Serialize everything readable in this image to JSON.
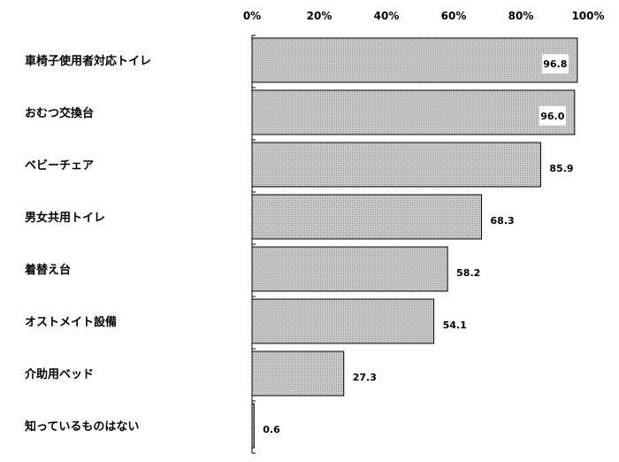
{
  "chart_data": {
    "type": "bar",
    "orientation": "horizontal",
    "categories": [
      "車椅子使用者対応トイレ",
      "おむつ交換台",
      "ベビーチェア",
      "男女共用トイレ",
      "着替え台",
      "オストメイト設備",
      "介助用ベッド",
      "知っているものはない"
    ],
    "values": [
      96.8,
      96.0,
      85.9,
      68.3,
      58.2,
      54.1,
      27.3,
      0.6
    ],
    "value_labels": [
      "96.8",
      "96.0",
      "85.9",
      "68.3",
      "58.2",
      "54.1",
      "27.3",
      "0.6"
    ],
    "xlim": [
      0,
      100
    ],
    "xticks": [
      "0%",
      "20%",
      "40%",
      "60%",
      "80%",
      "100%"
    ],
    "x_axis_position": "top",
    "grid": false,
    "legend": "none",
    "colors": {
      "bar_fill": "#c8c8c8",
      "bar_edge": "#000000",
      "label_box": "#ffffff"
    }
  }
}
